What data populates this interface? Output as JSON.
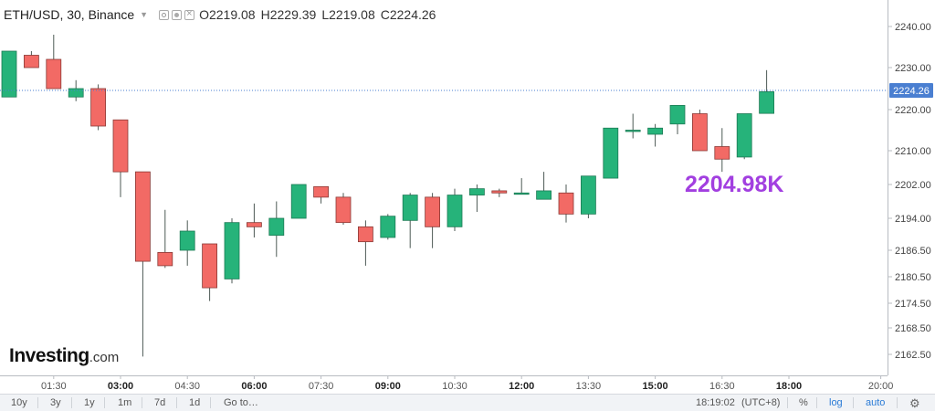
{
  "legend": {
    "symbol": "ETH/USD, 30, Binance",
    "open_label": "O",
    "open": "2219.08",
    "high_label": "H",
    "high": "2229.39",
    "low_label": "L",
    "low": "2219.08",
    "close_label": "C",
    "close": "2224.26"
  },
  "logo": {
    "brand": "Investing",
    "domain": ".com"
  },
  "annotation": "2204.98K",
  "toolbar": {
    "ranges": [
      "10y",
      "3y",
      "1y",
      "1m",
      "7d",
      "1d"
    ],
    "goto": "Go to…",
    "time": "18:19:02",
    "timezone": "(UTC+8)",
    "percent": "%",
    "log": "log",
    "auto": "auto"
  },
  "colors": {
    "up": "#26b37a",
    "down": "#f26a65",
    "price_line": "#4a7fd1",
    "annotation": "#a23fe0"
  },
  "chart_data": {
    "type": "candlestick",
    "title": "ETH/USD, 30, Binance",
    "x_ticks": [
      "01:30",
      "03:00",
      "04:30",
      "06:00",
      "07:30",
      "09:00",
      "10:30",
      "12:00",
      "13:30",
      "15:00",
      "16:30",
      "18:00",
      "20:00"
    ],
    "y_ticks": [
      "2240.00",
      "2230.00",
      "2220.00",
      "2210.00",
      "2202.00",
      "2194.00",
      "2186.50",
      "2180.50",
      "2174.50",
      "2168.50",
      "2162.50"
    ],
    "last_price": "2224.26",
    "last_price_value": 2224.26,
    "ohlc": [
      {
        "time": "00:30",
        "o": 2223.0,
        "h": 2234.0,
        "l": 2223.0,
        "c": 2234.0
      },
      {
        "time": "01:00",
        "o": 2233.0,
        "h": 2234.0,
        "l": 2230.0,
        "c": 2230.0
      },
      {
        "time": "01:30",
        "o": 2232.0,
        "h": 2238.0,
        "l": 2225.0,
        "c": 2225.0
      },
      {
        "time": "02:00",
        "o": 2223.0,
        "h": 2227.0,
        "l": 2222.0,
        "c": 2225.0
      },
      {
        "time": "02:30",
        "o": 2225.0,
        "h": 2226.0,
        "l": 2215.0,
        "c": 2216.0
      },
      {
        "time": "03:00",
        "o": 2217.5,
        "h": 2217.5,
        "l": 2199.0,
        "c": 2205.0
      },
      {
        "time": "03:30",
        "o": 2205.0,
        "h": 2205.0,
        "l": 2162.0,
        "c": 2184.0
      },
      {
        "time": "04:00",
        "o": 2186.0,
        "h": 2196.0,
        "l": 2182.5,
        "c": 2183.0
      },
      {
        "time": "04:30",
        "o": 2186.5,
        "h": 2193.5,
        "l": 2183.0,
        "c": 2191.0
      },
      {
        "time": "05:00",
        "o": 2188.0,
        "h": 2188.0,
        "l": 2175.0,
        "c": 2178.0
      },
      {
        "time": "05:30",
        "o": 2180.0,
        "h": 2194.0,
        "l": 2179.0,
        "c": 2193.0
      },
      {
        "time": "06:00",
        "o": 2193.0,
        "h": 2197.5,
        "l": 2189.5,
        "c": 2192.0
      },
      {
        "time": "06:30",
        "o": 2190.0,
        "h": 2198.0,
        "l": 2185.0,
        "c": 2194.0
      },
      {
        "time": "07:00",
        "o": 2194.0,
        "h": 2202.0,
        "l": 2194.0,
        "c": 2202.0
      },
      {
        "time": "07:30",
        "o": 2201.5,
        "h": 2201.5,
        "l": 2197.5,
        "c": 2199.0
      },
      {
        "time": "08:00",
        "o": 2199.0,
        "h": 2200.0,
        "l": 2192.5,
        "c": 2193.0
      },
      {
        "time": "08:30",
        "o": 2192.0,
        "h": 2193.5,
        "l": 2183.0,
        "c": 2188.5
      },
      {
        "time": "09:00",
        "o": 2189.5,
        "h": 2195.0,
        "l": 2189.0,
        "c": 2194.5
      },
      {
        "time": "09:30",
        "o": 2193.5,
        "h": 2200.0,
        "l": 2187.0,
        "c": 2199.5
      },
      {
        "time": "10:00",
        "o": 2199.0,
        "h": 2200.0,
        "l": 2187.0,
        "c": 2192.0
      },
      {
        "time": "10:30",
        "o": 2192.0,
        "h": 2201.0,
        "l": 2191.0,
        "c": 2199.5
      },
      {
        "time": "11:00",
        "o": 2199.5,
        "h": 2202.0,
        "l": 2195.5,
        "c": 2201.0
      },
      {
        "time": "11:30",
        "o": 2200.5,
        "h": 2201.0,
        "l": 2199.0,
        "c": 2200.0
      },
      {
        "time": "12:00",
        "o": 2200.0,
        "h": 2203.5,
        "l": 2200.0,
        "c": 2200.0
      },
      {
        "time": "12:30",
        "o": 2198.5,
        "h": 2205.0,
        "l": 2198.5,
        "c": 2200.5
      },
      {
        "time": "13:00",
        "o": 2200.0,
        "h": 2202.0,
        "l": 2193.0,
        "c": 2195.0
      },
      {
        "time": "13:30",
        "o": 2195.0,
        "h": 2204.0,
        "l": 2194.0,
        "c": 2204.0
      },
      {
        "time": "14:00",
        "o": 2203.5,
        "h": 2215.5,
        "l": 2203.5,
        "c": 2215.5
      },
      {
        "time": "14:30",
        "o": 2215.0,
        "h": 2219.0,
        "l": 2213.0,
        "c": 2215.0
      },
      {
        "time": "15:00",
        "o": 2214.0,
        "h": 2216.5,
        "l": 2211.0,
        "c": 2215.5
      },
      {
        "time": "15:30",
        "o": 2216.5,
        "h": 2221.0,
        "l": 2214.0,
        "c": 2221.0
      },
      {
        "time": "16:00",
        "o": 2219.0,
        "h": 2220.0,
        "l": 2210.0,
        "c": 2210.0
      },
      {
        "time": "16:30",
        "o": 2211.0,
        "h": 2215.5,
        "l": 2205.0,
        "c": 2208.0
      },
      {
        "time": "17:00",
        "o": 2208.5,
        "h": 2219.0,
        "l": 2208.0,
        "c": 2219.0
      },
      {
        "time": "17:30",
        "o": 2219.08,
        "h": 2229.39,
        "l": 2219.08,
        "c": 2224.26
      }
    ]
  }
}
